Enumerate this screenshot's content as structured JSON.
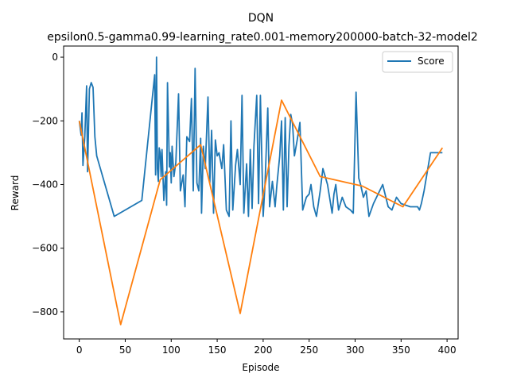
{
  "chart_data": {
    "type": "line",
    "title": "DQN",
    "subtitle": "epsilon0.5-gamma0.99-learning_rate0.001-memory200000-batch-32-model2",
    "xlabel": "Episode",
    "ylabel": "Reward",
    "xlim": [
      -17,
      412
    ],
    "ylim": [
      -885,
      35
    ],
    "x_ticks": [
      0,
      50,
      100,
      150,
      200,
      250,
      300,
      350,
      400
    ],
    "y_ticks": [
      0,
      -200,
      -400,
      -600,
      -800
    ],
    "legend": {
      "position": "top-right",
      "entries": [
        "Score"
      ]
    },
    "grid": false,
    "series": [
      {
        "name": "Score",
        "color": "#1f77b4",
        "x": [
          0,
          2,
          3,
          4,
          6,
          8,
          9,
          11,
          13,
          15,
          17,
          19,
          38,
          68,
          82,
          83,
          84,
          85,
          86,
          87,
          88,
          89,
          90,
          92,
          94,
          95,
          96,
          98,
          99,
          100,
          101,
          103,
          105,
          108,
          110,
          113,
          115,
          117,
          120,
          122,
          124,
          126,
          128,
          130,
          132,
          133,
          135,
          137,
          140,
          142,
          144,
          146,
          148,
          150,
          152,
          155,
          157,
          160,
          163,
          165,
          167,
          170,
          172,
          175,
          177,
          179,
          182,
          184,
          186,
          188,
          190,
          193,
          195,
          197,
          200,
          202,
          205,
          207,
          210,
          213,
          215,
          218,
          220,
          222,
          224,
          226,
          228,
          230,
          232,
          234,
          237,
          240,
          243,
          247,
          250,
          252,
          255,
          258,
          262,
          265,
          270,
          275,
          277,
          279,
          282,
          286,
          290,
          295,
          298,
          301,
          304,
          306,
          309,
          312,
          315,
          320,
          330,
          336,
          340,
          345,
          350,
          360,
          368,
          370,
          372,
          375,
          382,
          390,
          393,
          395
        ],
        "values": [
          -200,
          -245,
          -175,
          -340,
          -250,
          -90,
          -360,
          -100,
          -80,
          -95,
          -250,
          -310,
          -500,
          -450,
          -55,
          -370,
          0,
          -350,
          -390,
          -285,
          -300,
          -375,
          -290,
          -450,
          -360,
          -465,
          -80,
          -345,
          -300,
          -395,
          -280,
          -375,
          -330,
          -115,
          -420,
          -370,
          -470,
          -250,
          -265,
          -130,
          -420,
          -35,
          -395,
          -420,
          -255,
          -490,
          -280,
          -350,
          -125,
          -395,
          -230,
          -490,
          -260,
          -310,
          -300,
          -350,
          -275,
          -480,
          -500,
          -200,
          -480,
          -340,
          -290,
          -400,
          -120,
          -490,
          -335,
          -500,
          -290,
          -475,
          -280,
          -120,
          -460,
          -120,
          -500,
          -400,
          -160,
          -470,
          -390,
          -470,
          -400,
          -310,
          -200,
          -480,
          -190,
          -470,
          -280,
          -180,
          -210,
          -310,
          -260,
          -205,
          -480,
          -440,
          -430,
          -400,
          -470,
          -500,
          -420,
          -350,
          -400,
          -490,
          -430,
          -400,
          -480,
          -440,
          -470,
          -480,
          -490,
          -110,
          -380,
          -400,
          -440,
          -420,
          -500,
          -460,
          -400,
          -470,
          -480,
          -440,
          -460,
          -470,
          -470,
          -480,
          -460,
          -420,
          -300,
          -300,
          -300,
          -300
        ],
        "values_note_omitted": true
      },
      {
        "name": "",
        "color": "#ff7f0e",
        "x": [
          0,
          45,
          88,
          132,
          175,
          220,
          262,
          308,
          352,
          395
        ],
        "values": [
          -200,
          -840,
          -385,
          -275,
          -805,
          -135,
          -375,
          -405,
          -470,
          -285
        ]
      }
    ]
  }
}
